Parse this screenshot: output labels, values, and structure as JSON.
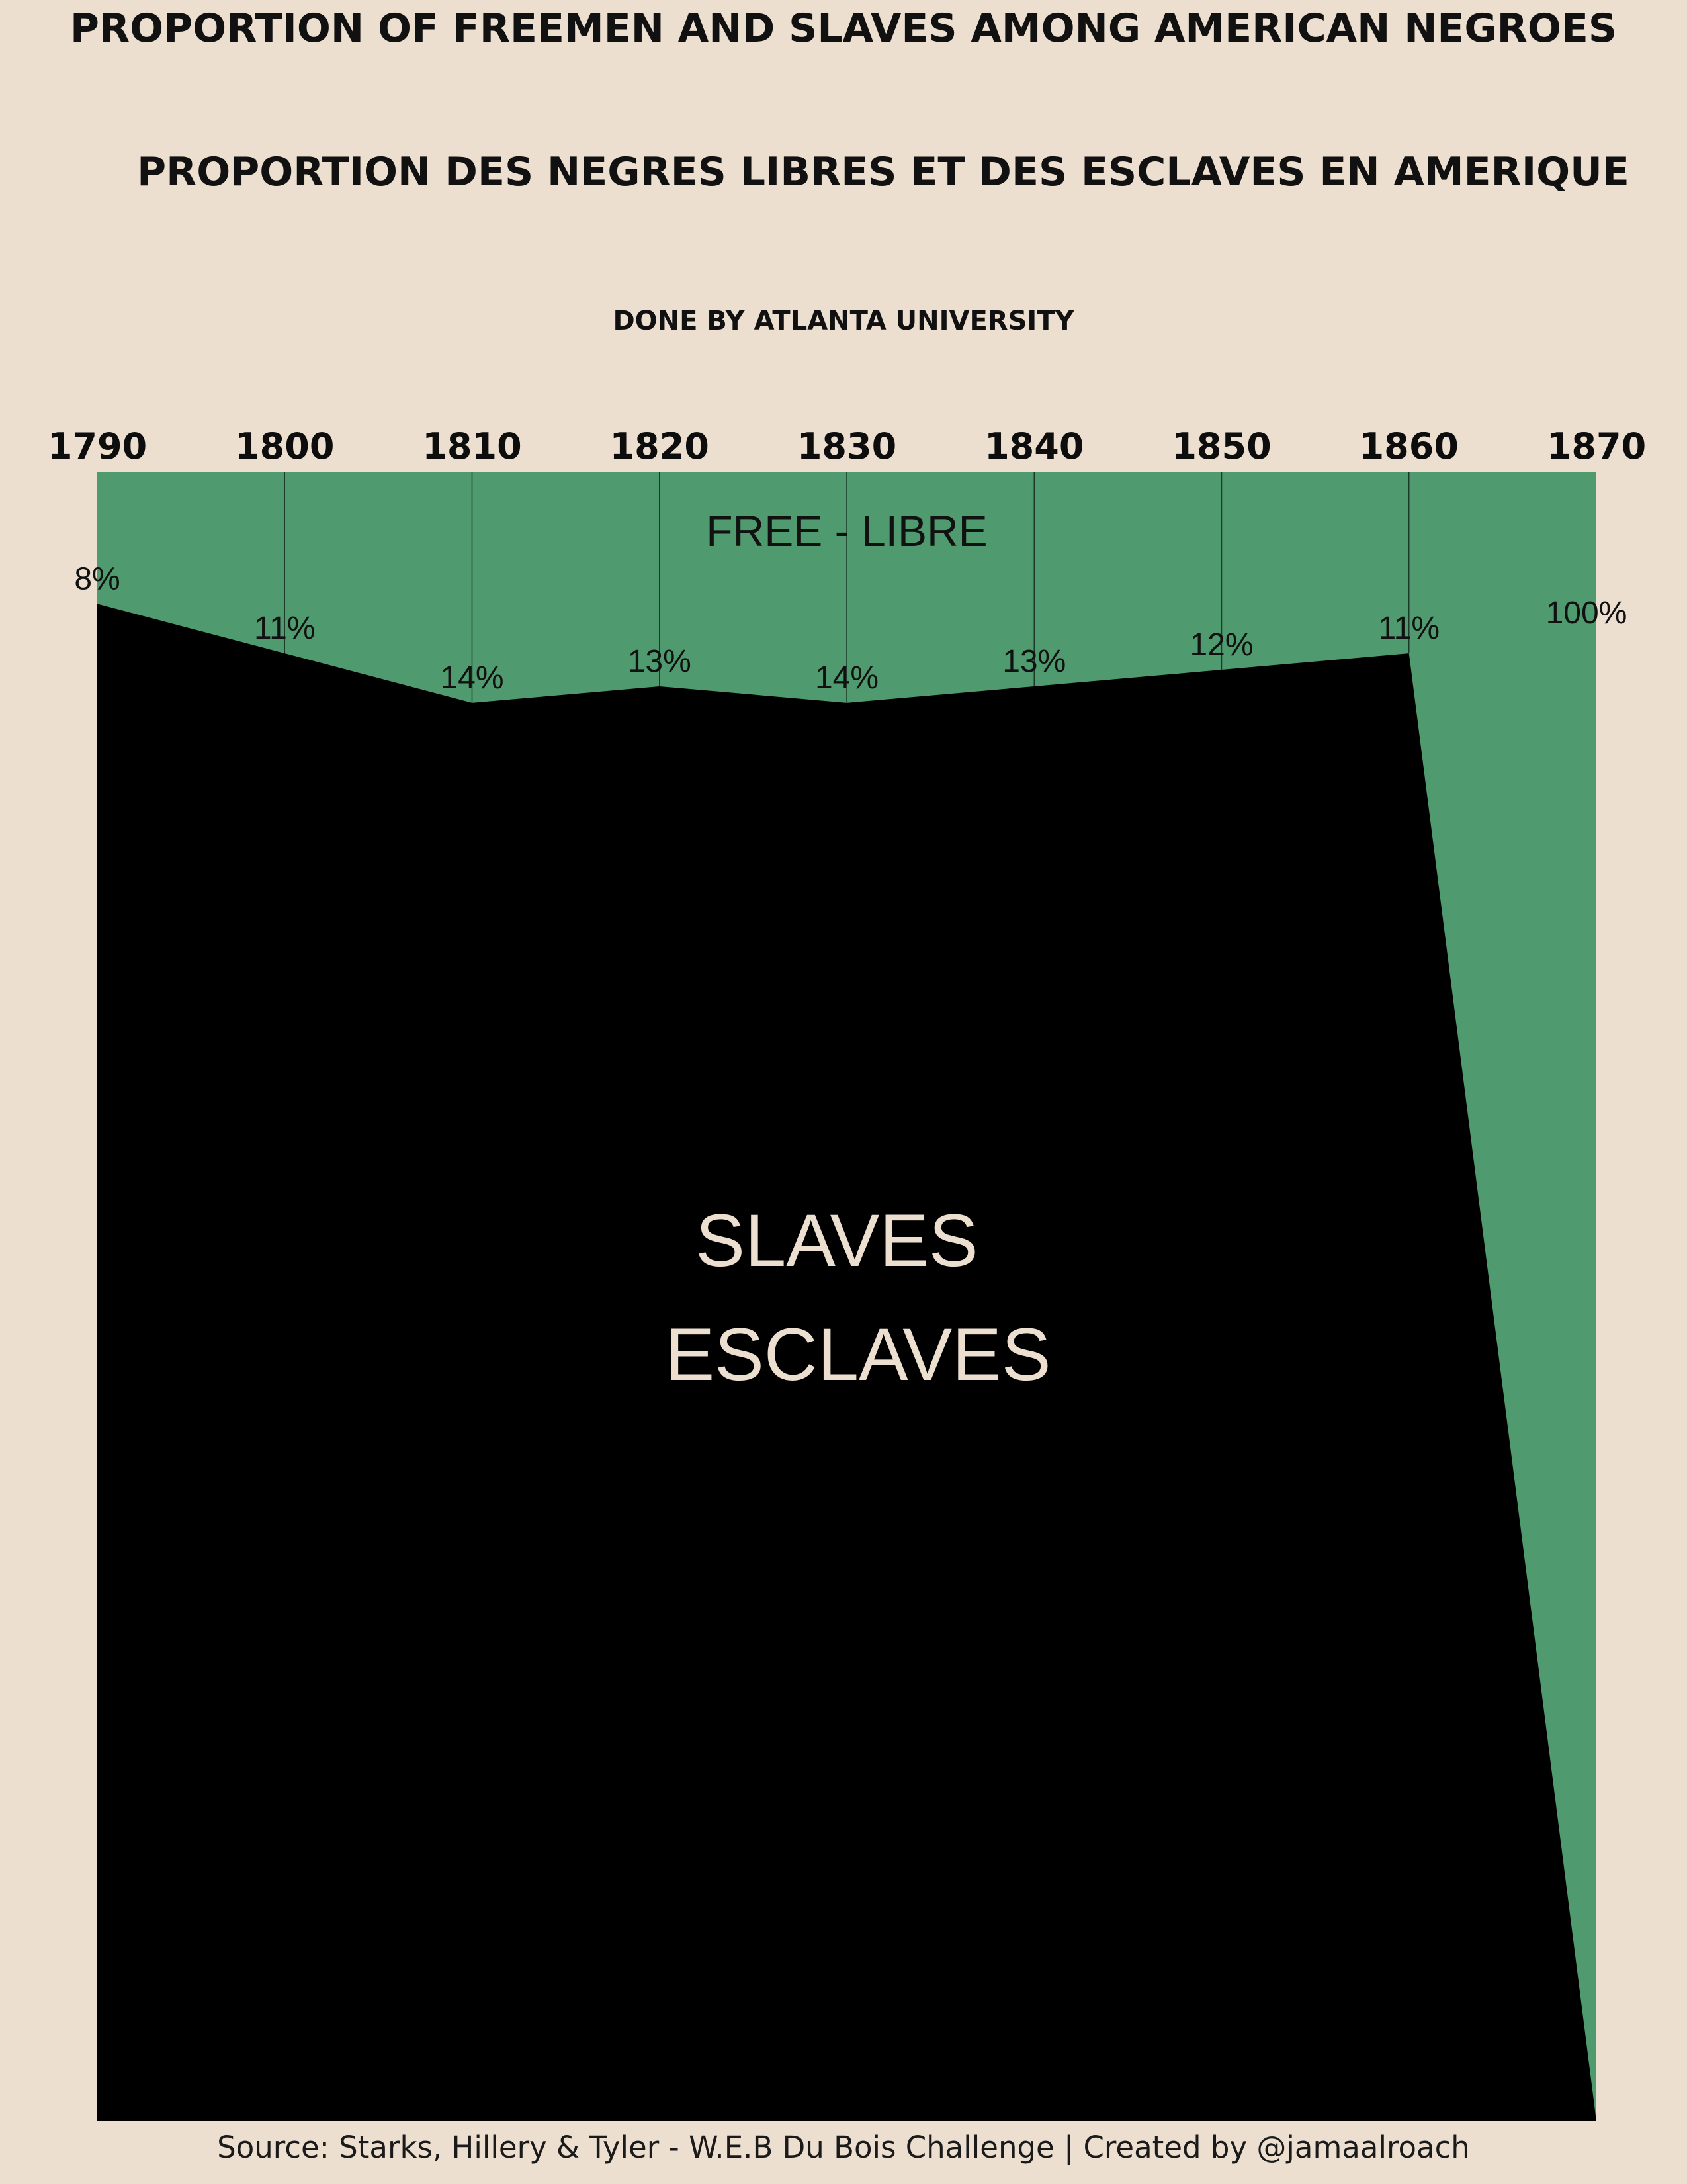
{
  "header": {
    "title_en": "PROPORTION OF FREEMEN AND SLAVES AMONG AMERICAN NEGROES",
    "title_fr": "PROPORTION DES NEGRES LIBRES ET DES ESCLAVES EN AMERIQUE",
    "subtitle": "DONE BY ATLANTA UNIVERSITY"
  },
  "footer": {
    "source": "Source: Starks, Hillery & Tyler - W.E.B Du Bois Challenge | Created by @jamaalroach"
  },
  "colors": {
    "background": "#ecdfd0",
    "free": "#4f9a6e",
    "slaves": "#000000",
    "slave_label": "#ecdfd0"
  },
  "chart_data": {
    "type": "area",
    "x": [
      1790,
      1800,
      1810,
      1820,
      1830,
      1840,
      1850,
      1860,
      1870
    ],
    "tick_labels": [
      "1790",
      "1800",
      "1810",
      "1820",
      "1830",
      "1840",
      "1850",
      "1860",
      "1870"
    ],
    "xlim": [
      1790,
      1870
    ],
    "ylim": [
      0,
      100
    ],
    "axis_position": "top",
    "gridlines": "vertical",
    "series": [
      {
        "name": "FREE - LIBRE",
        "values": [
          8,
          11,
          14,
          13,
          14,
          13,
          12,
          11,
          100
        ],
        "labels": [
          "8%",
          "11%",
          "14%",
          "13%",
          "14%",
          "13%",
          "12%",
          "11%",
          "100%"
        ]
      },
      {
        "name_lines": [
          "SLAVES",
          "ESCLAVES"
        ],
        "values": [
          92,
          89,
          86,
          87,
          86,
          87,
          88,
          89,
          0
        ]
      }
    ]
  }
}
